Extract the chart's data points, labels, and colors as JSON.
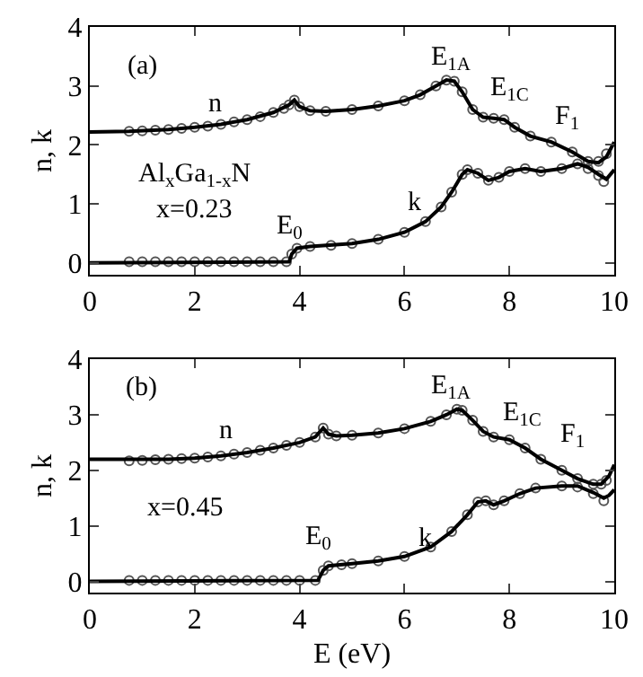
{
  "chart_data": [
    {
      "type": "line",
      "ylabel": "n, k",
      "xlim": [
        0,
        10
      ],
      "ylim": [
        -0.2,
        4
      ],
      "xticks": [
        0,
        2,
        4,
        6,
        8,
        10
      ],
      "yticks": [
        0,
        1,
        2,
        3,
        4
      ],
      "grid": false,
      "series": [
        {
          "type": "scatter",
          "marker": "circle",
          "color": "#555555",
          "x": [
            0.75,
            1,
            1.25,
            1.5,
            1.75,
            2,
            2.25,
            2.5,
            2.75,
            3,
            3.25,
            3.5,
            3.7,
            3.8,
            3.9,
            4,
            4.2,
            4.5,
            5,
            5.5,
            6,
            6.3,
            6.6,
            6.8,
            6.95,
            7.1,
            7.3,
            7.5,
            7.7,
            7.9,
            8.1,
            8.4,
            8.8,
            9.2,
            9.5,
            9.7,
            9.85
          ],
          "values": [
            2.23,
            2.24,
            2.25,
            2.26,
            2.28,
            2.3,
            2.32,
            2.35,
            2.39,
            2.43,
            2.48,
            2.55,
            2.62,
            2.68,
            2.76,
            2.65,
            2.58,
            2.57,
            2.6,
            2.66,
            2.75,
            2.85,
            3.0,
            3.1,
            3.08,
            2.9,
            2.6,
            2.47,
            2.45,
            2.43,
            2.3,
            2.15,
            2.05,
            1.88,
            1.72,
            1.72,
            1.85
          ]
        },
        {
          "marker": "none",
          "line_style": "solid",
          "color": "#000000",
          "x": [
            0,
            0.75,
            1.5,
            2,
            2.5,
            3,
            3.5,
            3.8,
            3.9,
            4,
            4.2,
            4.5,
            5,
            5.5,
            6,
            6.3,
            6.6,
            6.8,
            6.95,
            7.1,
            7.3,
            7.5,
            7.7,
            7.9,
            8.1,
            8.4,
            8.8,
            9.2,
            9.5,
            9.7,
            9.85,
            10
          ],
          "values": [
            2.22,
            2.23,
            2.26,
            2.3,
            2.35,
            2.43,
            2.55,
            2.68,
            2.76,
            2.65,
            2.58,
            2.57,
            2.6,
            2.66,
            2.75,
            2.85,
            3.0,
            3.1,
            3.08,
            2.9,
            2.6,
            2.47,
            2.45,
            2.43,
            2.3,
            2.15,
            2.05,
            1.88,
            1.72,
            1.7,
            1.8,
            2.05
          ]
        },
        {
          "type": "scatter",
          "marker": "circle",
          "color": "#555555",
          "x": [
            0.75,
            1,
            1.25,
            1.5,
            1.75,
            2,
            2.25,
            2.5,
            2.75,
            3,
            3.25,
            3.5,
            3.75,
            3.85,
            3.95,
            4.2,
            4.6,
            5,
            5.5,
            6,
            6.4,
            6.7,
            6.9,
            7.1,
            7.2,
            7.4,
            7.6,
            7.8,
            8,
            8.3,
            8.6,
            9,
            9.3,
            9.5,
            9.7,
            9.8
          ],
          "values": [
            0.02,
            0.02,
            0.02,
            0.02,
            0.02,
            0.02,
            0.02,
            0.02,
            0.02,
            0.02,
            0.02,
            0.02,
            0.02,
            0.15,
            0.25,
            0.28,
            0.3,
            0.33,
            0.4,
            0.52,
            0.7,
            0.95,
            1.2,
            1.5,
            1.58,
            1.52,
            1.4,
            1.45,
            1.55,
            1.6,
            1.55,
            1.6,
            1.68,
            1.6,
            1.48,
            1.38
          ]
        },
        {
          "marker": "none",
          "line_style": "solid",
          "color": "#000000",
          "x": [
            0,
            3.8,
            3.85,
            3.95,
            4.2,
            5,
            5.5,
            6,
            6.4,
            6.7,
            6.9,
            7.1,
            7.2,
            7.4,
            7.6,
            7.8,
            8,
            8.3,
            8.6,
            9,
            9.3,
            9.5,
            9.7,
            9.85,
            10
          ],
          "values": [
            0,
            0.02,
            0.15,
            0.25,
            0.28,
            0.33,
            0.4,
            0.52,
            0.7,
            0.95,
            1.2,
            1.5,
            1.58,
            1.52,
            1.4,
            1.45,
            1.55,
            1.6,
            1.55,
            1.6,
            1.68,
            1.62,
            1.5,
            1.42,
            1.58
          ]
        }
      ],
      "annotations": [
        "(a)",
        "Al$_{x}$Ga$_{1-x}$N",
        "x=0.23",
        "n",
        "k",
        "E$_{0}$",
        "E$_{1A}$",
        "E$_{1C}$",
        "F$_{1}$"
      ]
    },
    {
      "type": "line",
      "ylabel": "n, k",
      "xlabel": "E (eV)",
      "xlim": [
        0,
        10
      ],
      "ylim": [
        -0.2,
        4
      ],
      "xticks": [
        0,
        2,
        4,
        6,
        8,
        10
      ],
      "yticks": [
        0,
        1,
        2,
        3,
        4
      ],
      "grid": false,
      "series": [
        {
          "type": "scatter",
          "marker": "circle",
          "color": "#555555",
          "x": [
            0.75,
            1,
            1.25,
            1.5,
            1.75,
            2,
            2.25,
            2.5,
            2.75,
            3,
            3.25,
            3.5,
            3.75,
            4,
            4.3,
            4.45,
            4.55,
            4.7,
            5,
            5.5,
            6,
            6.5,
            6.8,
            7,
            7.1,
            7.3,
            7.5,
            7.7,
            8,
            8.3,
            8.6,
            9,
            9.3,
            9.6,
            9.75,
            9.85
          ],
          "values": [
            2.17,
            2.18,
            2.19,
            2.2,
            2.21,
            2.22,
            2.24,
            2.26,
            2.29,
            2.32,
            2.36,
            2.4,
            2.45,
            2.5,
            2.6,
            2.76,
            2.65,
            2.62,
            2.63,
            2.67,
            2.75,
            2.88,
            3.0,
            3.1,
            3.08,
            2.9,
            2.7,
            2.6,
            2.55,
            2.4,
            2.2,
            2.0,
            1.85,
            1.75,
            1.75,
            1.82
          ]
        },
        {
          "marker": "none",
          "line_style": "solid",
          "color": "#000000",
          "x": [
            0,
            0.75,
            1.5,
            2,
            2.5,
            3,
            3.5,
            4,
            4.3,
            4.45,
            4.55,
            4.7,
            5,
            5.5,
            6,
            6.5,
            6.8,
            7,
            7.1,
            7.3,
            7.5,
            7.7,
            8,
            8.3,
            8.6,
            9,
            9.3,
            9.6,
            9.75,
            9.9,
            10
          ],
          "values": [
            2.2,
            2.2,
            2.2,
            2.22,
            2.26,
            2.32,
            2.4,
            2.5,
            2.6,
            2.76,
            2.65,
            2.62,
            2.63,
            2.67,
            2.75,
            2.88,
            3.0,
            3.1,
            3.08,
            2.9,
            2.7,
            2.6,
            2.55,
            2.4,
            2.2,
            2.0,
            1.85,
            1.75,
            1.75,
            1.9,
            2.1
          ]
        },
        {
          "type": "scatter",
          "marker": "circle",
          "color": "#555555",
          "x": [
            0.75,
            1,
            1.25,
            1.5,
            1.75,
            2,
            2.25,
            2.5,
            2.75,
            3,
            3.25,
            3.5,
            3.75,
            4,
            4.3,
            4.45,
            4.55,
            4.8,
            5,
            5.5,
            6,
            6.5,
            6.9,
            7.2,
            7.4,
            7.55,
            7.7,
            7.9,
            8.2,
            8.5,
            9,
            9.3,
            9.6,
            9.8
          ],
          "values": [
            0.02,
            0.02,
            0.02,
            0.02,
            0.02,
            0.02,
            0.02,
            0.02,
            0.02,
            0.02,
            0.02,
            0.02,
            0.02,
            0.02,
            0.02,
            0.2,
            0.28,
            0.3,
            0.32,
            0.37,
            0.45,
            0.62,
            0.9,
            1.2,
            1.43,
            1.45,
            1.38,
            1.45,
            1.58,
            1.68,
            1.72,
            1.7,
            1.58,
            1.45
          ]
        },
        {
          "marker": "none",
          "line_style": "solid",
          "color": "#000000",
          "x": [
            0,
            4.35,
            4.45,
            4.55,
            5,
            5.5,
            6,
            6.5,
            6.9,
            7.2,
            7.4,
            7.55,
            7.7,
            7.9,
            8.2,
            8.5,
            9,
            9.3,
            9.6,
            9.8,
            9.9,
            10
          ],
          "values": [
            0,
            0.02,
            0.2,
            0.28,
            0.32,
            0.37,
            0.45,
            0.62,
            0.9,
            1.2,
            1.43,
            1.45,
            1.38,
            1.45,
            1.58,
            1.68,
            1.72,
            1.72,
            1.6,
            1.5,
            1.55,
            1.65
          ]
        }
      ],
      "annotations": [
        "(b)",
        "x=0.45",
        "n",
        "k",
        "E$_{0}$",
        "E$_{1A}$",
        "E$_{1C}$",
        "F$_{1}$"
      ]
    }
  ]
}
